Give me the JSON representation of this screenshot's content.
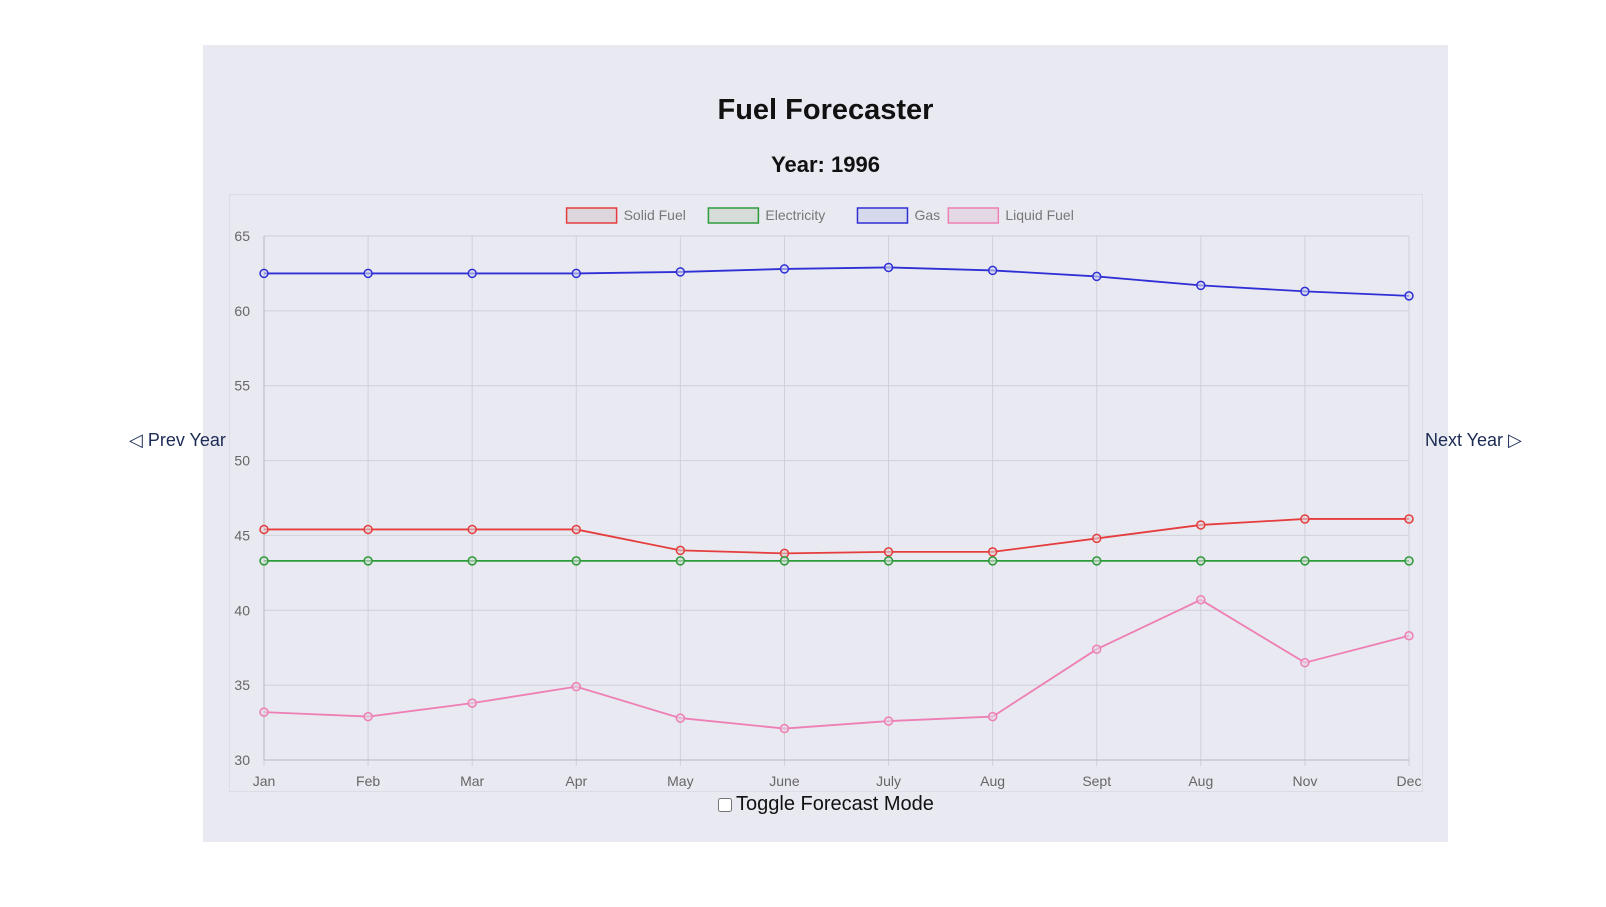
{
  "header": {
    "title": "Fuel Forecaster",
    "year_label": "Year: 1996"
  },
  "nav": {
    "prev_label": "◁ Prev Year",
    "next_label": "Next Year ▷"
  },
  "toggle": {
    "label": "Toggle Forecast Mode",
    "checked": false
  },
  "chart_data": {
    "type": "line",
    "title": "",
    "xlabel": "",
    "ylabel": "",
    "categories": [
      "Jan",
      "Feb",
      "Mar",
      "Apr",
      "May",
      "June",
      "July",
      "Aug",
      "Sept",
      "Aug",
      "Nov",
      "Dec"
    ],
    "ylim": [
      30,
      65
    ],
    "yticks": [
      30,
      35,
      40,
      45,
      50,
      55,
      60,
      65
    ],
    "grid": true,
    "legend_position": "top-center",
    "series": [
      {
        "name": "Solid Fuel",
        "color": "#e53d3d",
        "fill": "#ddd6dc",
        "values": [
          45.4,
          45.4,
          45.4,
          45.4,
          44.0,
          43.8,
          43.9,
          43.9,
          44.8,
          45.7,
          46.1,
          46.1
        ]
      },
      {
        "name": "Electricity",
        "color": "#2e9b3a",
        "fill": "#d6dcd8",
        "values": [
          43.3,
          43.3,
          43.3,
          43.3,
          43.3,
          43.3,
          43.3,
          43.3,
          43.3,
          43.3,
          43.3,
          43.3
        ]
      },
      {
        "name": "Gas",
        "color": "#2f2fd6",
        "fill": "#d6d8ec",
        "values": [
          62.5,
          62.5,
          62.5,
          62.5,
          62.6,
          62.8,
          62.9,
          62.7,
          62.3,
          61.7,
          61.3,
          61.0
        ]
      },
      {
        "name": "Liquid Fuel",
        "color": "#ee7fb4",
        "fill": "#e4d8e4",
        "values": [
          33.2,
          32.9,
          33.8,
          34.9,
          32.8,
          32.1,
          32.6,
          32.9,
          37.4,
          40.7,
          36.5,
          38.3
        ]
      }
    ]
  }
}
